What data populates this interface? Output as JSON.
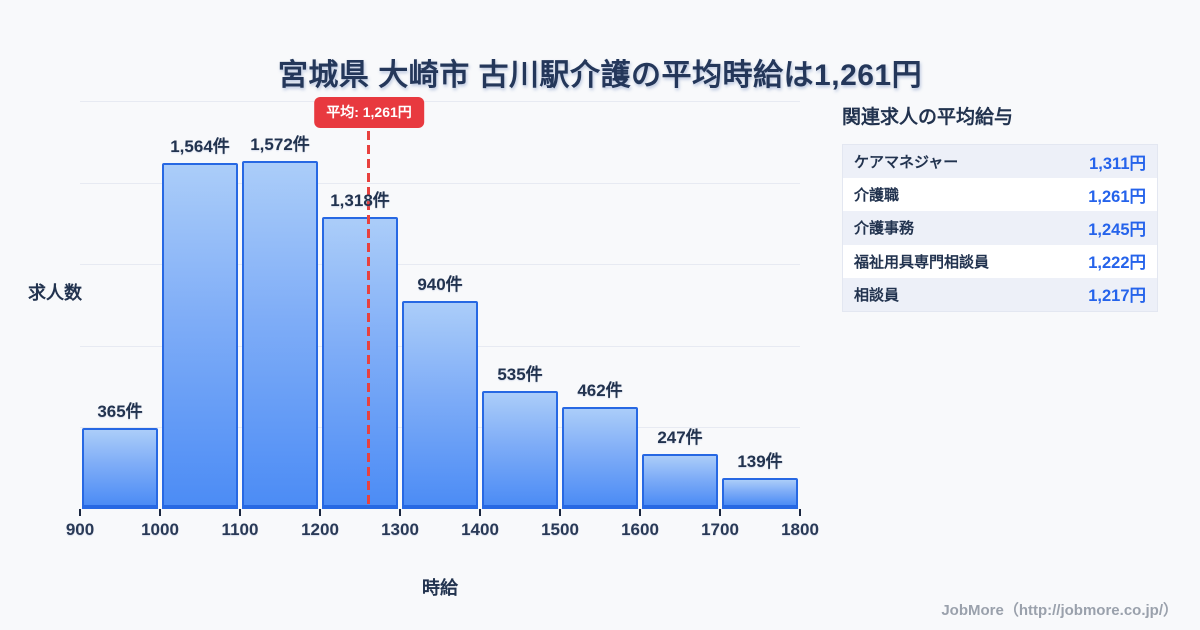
{
  "title": "宮城県 大崎市 古川駅介護の平均時給は1,261円",
  "chart_data": {
    "type": "bar",
    "title": "宮城県 大崎市 古川駅介護の平均時給は1,261円",
    "xlabel": "時給",
    "ylabel": "求人数",
    "bin_edges": [
      900,
      1000,
      1100,
      1200,
      1300,
      1400,
      1500,
      1600,
      1700,
      1800
    ],
    "values": [
      365,
      1564,
      1572,
      1318,
      940,
      535,
      462,
      247,
      139
    ],
    "labels": [
      "365件",
      "1,564件",
      "1,572件",
      "1,318件",
      "940件",
      "535件",
      "462件",
      "247件",
      "139件"
    ],
    "average": {
      "value": 1261,
      "label": "平均: 1,261円"
    },
    "ylim": [
      0,
      1843
    ],
    "grid": true,
    "gridline_count": 5,
    "legend": "none"
  },
  "related_jobs": {
    "heading": "関連求人の平均給与",
    "rows": [
      {
        "label": "ケアマネジャー",
        "value": "1,311円"
      },
      {
        "label": "介護職",
        "value": "1,261円"
      },
      {
        "label": "介護事務",
        "value": "1,245円"
      },
      {
        "label": "福祉用具専門相談員",
        "value": "1,222円"
      },
      {
        "label": "相談員",
        "value": "1,217円"
      }
    ]
  },
  "footer": {
    "credit": "JobMore（http://jobmore.co.jp/）"
  },
  "colors": {
    "background": "#f8f9fb",
    "navy_text": "#22334f",
    "bar_gradient_top": "#abcdf9",
    "bar_gradient_bottom": "#4c8cf5",
    "bar_border": "#2768e3",
    "average_red": "#e8393f",
    "value_blue": "#2563eb",
    "gridline": "#e7eaf2",
    "row_alt_background": "#edf0f8",
    "credit_gray": "#9aa1ac"
  }
}
